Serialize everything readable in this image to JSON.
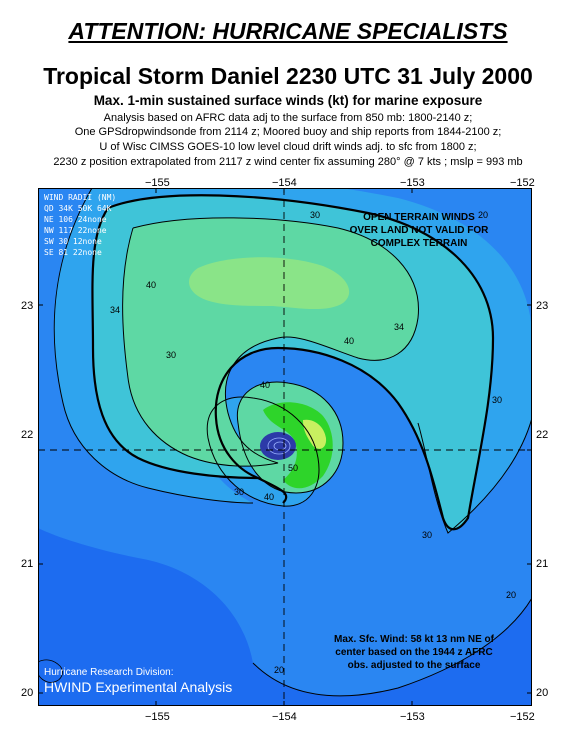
{
  "header": {
    "attention": "ATTENTION: HURRICANE SPECIALISTS",
    "title": "Tropical Storm Daniel  2230 UTC 31 July 2000",
    "subtitle": "Max. 1-min sustained surface winds (kt) for marine exposure",
    "info": [
      "Analysis based on AFRC data adj to the surface from 850 mb: 1800-2140 z;",
      "One GPSdropwindsonde from 2114 z; Moored buoy and ship reports from 1844-2100 z;",
      "U of Wisc CIMSS GOES-10 low level cloud drift winds adj. to sfc from 1800 z;",
      "2230 z position extrapolated from 2117 z wind center fix assuming 280° @ 7 kts ; mslp = 993 mb"
    ]
  },
  "axes": {
    "lon_labels": [
      "−155",
      "−154",
      "−153",
      "−152"
    ],
    "lat_labels": [
      "23",
      "22",
      "21",
      "20"
    ]
  },
  "map": {
    "wind_radii": {
      "title": "WIND RADII (NM)",
      "rows": [
        "QD 34K 50K 64K",
        "NE 106  24none",
        "NW 117  22none",
        "SW  30  12none",
        "SE  81  22none"
      ]
    },
    "terrain_note": [
      "OPEN TERRAIN WINDS",
      "OVER LAND NOT VALID FOR",
      "COMPLEX TERRAIN"
    ],
    "max_wind_note": [
      "Max. Sfc. Wind: 58 kt 13 nm NE of",
      "center based on the 1944 z AFRC",
      "obs. adjusted to the surface"
    ],
    "credit_division": "Hurricane Research Division:",
    "credit_title": "HWIND Experimental Analysis",
    "contour_labels": {
      "l20a": "20",
      "l20b": "20",
      "l20c": "20",
      "l30a": "30",
      "l30b": "30",
      "l30c": "30",
      "l30d": "30",
      "l30e": "30",
      "l34a": "34",
      "l34b": "34",
      "l40a": "40",
      "l40b": "40",
      "l40c": "40",
      "l40d": "40",
      "l50": "50"
    },
    "colors": {
      "background": "#1d6cf0",
      "band_20": "#2a86f2",
      "band_30": "#2fa4ee",
      "band_34": "#3fc4d8",
      "band_40": "#5ed8a4",
      "band_45": "#8ae488",
      "band_50": "#2ed42a",
      "band_55": "#c8f060",
      "eye": "#2c3aa8",
      "text_on_map": "#ffffff"
    }
  }
}
